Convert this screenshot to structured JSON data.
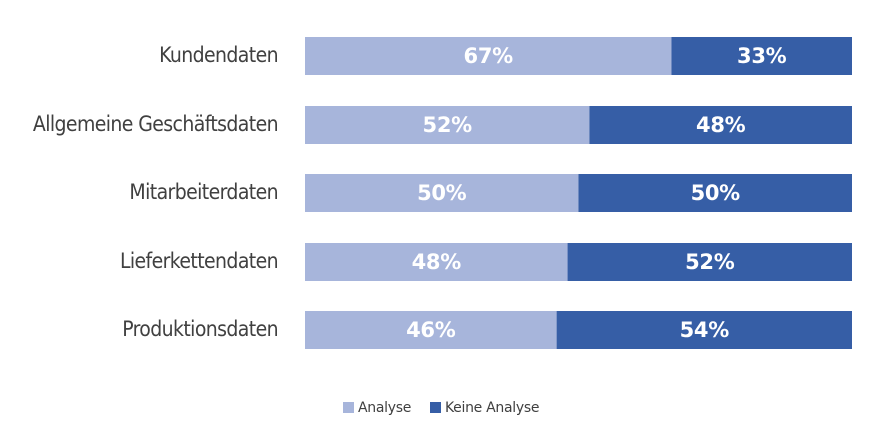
{
  "chart_data": {
    "type": "stacked_bar_horizontal",
    "categories": [
      "Kundendaten",
      "Allgemeine Geschäftsdaten",
      "Mitarbeiterdaten",
      "Lieferkettendaten",
      "Produktionsdaten"
    ],
    "series": [
      {
        "name": "Analyse",
        "color": "#a7b5db",
        "values": [
          67,
          52,
          50,
          48,
          46
        ],
        "value_labels": [
          "67%",
          "52%",
          "50%",
          "48%",
          "46%"
        ]
      },
      {
        "name": "Keine Analyse",
        "color": "#365ea6",
        "values": [
          33,
          48,
          50,
          52,
          54
        ],
        "value_labels": [
          "33%",
          "48%",
          "50%",
          "52%",
          "54%"
        ]
      }
    ],
    "xlim": [
      0,
      100
    ],
    "legend": "bottom"
  }
}
